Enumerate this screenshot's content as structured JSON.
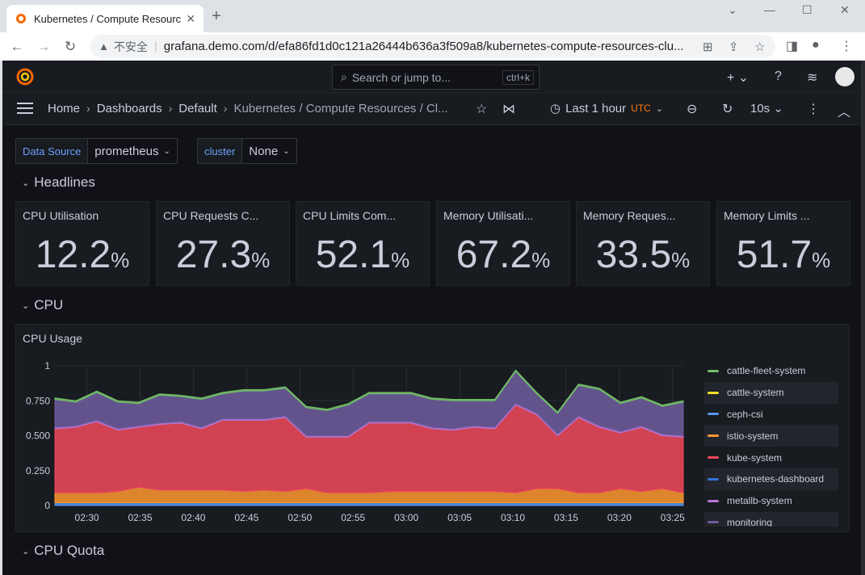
{
  "browser": {
    "tab_title": "Kubernetes / Compute Resources / Cluster - Dashboards - Grafana",
    "insecure_label": "不安全",
    "url": "grafana.demo.com/d/efa86fd1d0c121a26444b636a3f509a8/kubernetes-compute-resources-clu..."
  },
  "search": {
    "placeholder": "Search or jump to...",
    "shortcut": "ctrl+k"
  },
  "breadcrumbs": [
    "Home",
    "Dashboards",
    "Default",
    "Kubernetes / Compute Resources / Cl..."
  ],
  "time_range": {
    "label": "Last 1 hour",
    "timezone": "UTC",
    "refresh": "10s"
  },
  "variables": [
    {
      "label": "Data Source",
      "value": "prometheus"
    },
    {
      "label": "cluster",
      "value": "None"
    }
  ],
  "rows": {
    "headlines": "Headlines",
    "cpu": "CPU",
    "cpu_quota": "CPU Quota"
  },
  "stats": [
    {
      "title": "CPU Utilisation",
      "value": "12.2",
      "unit": "%"
    },
    {
      "title": "CPU Requests C...",
      "value": "27.3",
      "unit": "%"
    },
    {
      "title": "CPU Limits Com...",
      "value": "52.1",
      "unit": "%"
    },
    {
      "title": "Memory Utilisati...",
      "value": "67.2",
      "unit": "%"
    },
    {
      "title": "Memory Reques...",
      "value": "33.5",
      "unit": "%"
    },
    {
      "title": "Memory Limits ...",
      "value": "51.7",
      "unit": "%"
    }
  ],
  "panel": {
    "title": "CPU Usage"
  },
  "legend": [
    {
      "name": "cattle-fleet-system",
      "color": "#73bf69"
    },
    {
      "name": "cattle-system",
      "color": "#fade2a"
    },
    {
      "name": "ceph-csi",
      "color": "#5794f2"
    },
    {
      "name": "istio-system",
      "color": "#ff9830"
    },
    {
      "name": "kube-system",
      "color": "#f2495c"
    },
    {
      "name": "kubernetes-dashboard",
      "color": "#3274d9"
    },
    {
      "name": "metallb-system",
      "color": "#b877d9"
    },
    {
      "name": "monitoring",
      "color": "#705da0"
    }
  ],
  "chart_data": {
    "type": "area",
    "stacked": true,
    "title": "CPU Usage",
    "x": [
      "02:27",
      "02:28",
      "02:30",
      "02:32",
      "02:34",
      "02:36",
      "02:38",
      "02:40",
      "02:42",
      "02:44",
      "02:46",
      "02:48",
      "02:50",
      "02:52",
      "02:54",
      "02:56",
      "02:58",
      "03:00",
      "03:02",
      "03:04",
      "03:06",
      "03:08",
      "03:10",
      "03:12",
      "03:14",
      "03:16",
      "03:18",
      "03:20",
      "03:22",
      "03:24",
      "03:26"
    ],
    "x_tick_labels": [
      "02:30",
      "02:35",
      "02:40",
      "02:45",
      "02:50",
      "02:55",
      "03:00",
      "03:05",
      "03:10",
      "03:15",
      "03:20",
      "03:25"
    ],
    "y_tick_labels": [
      "0",
      "0.250",
      "0.500",
      "0.750",
      "1"
    ],
    "ylim": [
      0,
      1
    ],
    "series": [
      {
        "name": "ceph-csi",
        "color": "#5794f2",
        "values": [
          0.02,
          0.02,
          0.02,
          0.02,
          0.02,
          0.02,
          0.02,
          0.02,
          0.02,
          0.02,
          0.02,
          0.02,
          0.02,
          0.02,
          0.02,
          0.02,
          0.02,
          0.02,
          0.02,
          0.02,
          0.02,
          0.02,
          0.02,
          0.02,
          0.02,
          0.02,
          0.02,
          0.02,
          0.02,
          0.02,
          0.02
        ]
      },
      {
        "name": "istio-system",
        "color": "#ff9830",
        "values": [
          0.07,
          0.07,
          0.07,
          0.08,
          0.11,
          0.09,
          0.09,
          0.09,
          0.09,
          0.08,
          0.09,
          0.08,
          0.1,
          0.07,
          0.07,
          0.07,
          0.08,
          0.08,
          0.08,
          0.08,
          0.08,
          0.08,
          0.07,
          0.1,
          0.1,
          0.07,
          0.07,
          0.1,
          0.08,
          0.1,
          0.07
        ]
      },
      {
        "name": "kube-system",
        "color": "#f2495c",
        "values": [
          0.46,
          0.47,
          0.51,
          0.44,
          0.43,
          0.47,
          0.48,
          0.44,
          0.5,
          0.51,
          0.5,
          0.53,
          0.37,
          0.4,
          0.4,
          0.5,
          0.49,
          0.49,
          0.45,
          0.44,
          0.46,
          0.45,
          0.63,
          0.53,
          0.38,
          0.54,
          0.47,
          0.4,
          0.46,
          0.38,
          0.4
        ]
      },
      {
        "name": "metallb-system",
        "color": "#b877d9",
        "values": [
          0.01,
          0.01,
          0.01,
          0.01,
          0.01,
          0.01,
          0.01,
          0.01,
          0.01,
          0.01,
          0.01,
          0.01,
          0.01,
          0.01,
          0.01,
          0.01,
          0.01,
          0.01,
          0.01,
          0.01,
          0.01,
          0.01,
          0.01,
          0.01,
          0.01,
          0.01,
          0.01,
          0.01,
          0.01,
          0.01,
          0.01
        ]
      },
      {
        "name": "monitoring",
        "color": "#705da0",
        "values": [
          0.2,
          0.17,
          0.2,
          0.19,
          0.16,
          0.2,
          0.18,
          0.2,
          0.18,
          0.2,
          0.2,
          0.2,
          0.2,
          0.18,
          0.22,
          0.2,
          0.2,
          0.2,
          0.2,
          0.2,
          0.18,
          0.19,
          0.23,
          0.14,
          0.15,
          0.22,
          0.26,
          0.2,
          0.2,
          0.2,
          0.24
        ]
      },
      {
        "name": "cattle-fleet-system",
        "color": "#73bf69",
        "values": [
          0.01,
          0.01,
          0.01,
          0.01,
          0.01,
          0.01,
          0.01,
          0.01,
          0.01,
          0.01,
          0.01,
          0.01,
          0.01,
          0.01,
          0.01,
          0.01,
          0.01,
          0.01,
          0.01,
          0.01,
          0.01,
          0.01,
          0.01,
          0.01,
          0.01,
          0.01,
          0.01,
          0.01,
          0.01,
          0.01,
          0.01
        ]
      }
    ]
  }
}
